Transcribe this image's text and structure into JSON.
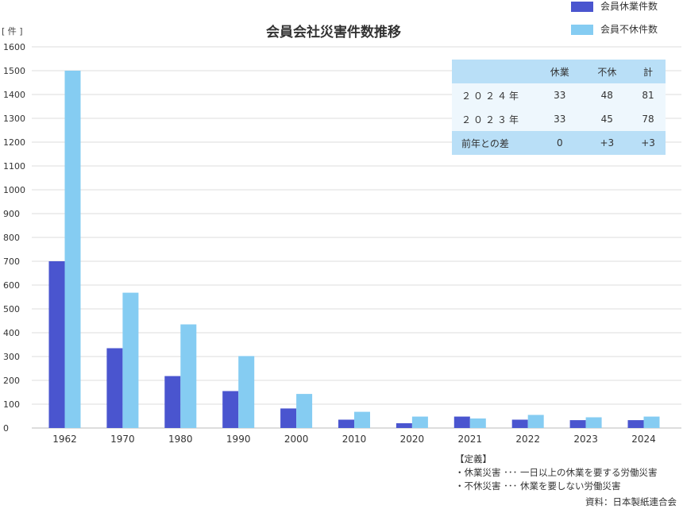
{
  "chart_data": {
    "type": "bar",
    "title": "会員会社災害件数推移",
    "ylabel": "[ 件 ]",
    "ylim": [
      0,
      1600
    ],
    "yticks": [
      0,
      100,
      200,
      300,
      400,
      500,
      600,
      700,
      800,
      900,
      1000,
      1100,
      1200,
      1300,
      1400,
      1500,
      1600
    ],
    "categories": [
      "1962",
      "1970",
      "1980",
      "1990",
      "2000",
      "2010",
      "2020",
      "2021",
      "2022",
      "2023",
      "2024"
    ],
    "series": [
      {
        "name": "会員休業件数",
        "color": "#4a55cf",
        "values": [
          700,
          335,
          218,
          155,
          82,
          35,
          20,
          48,
          35,
          33,
          33
        ]
      },
      {
        "name": "会員不休件数",
        "color": "#85ccf2",
        "values": [
          1500,
          568,
          435,
          302,
          143,
          68,
          48,
          40,
          55,
          45,
          48
        ]
      }
    ],
    "grid": true,
    "legend_position": "top-right"
  },
  "summary_table": {
    "headers": [
      "",
      "休業",
      "不休",
      "計"
    ],
    "rows": [
      [
        "２０２４年",
        "33",
        "48",
        "81"
      ],
      [
        "２０２３年",
        "33",
        "45",
        "78"
      ],
      [
        "前年との差",
        "0",
        "+3",
        "+3"
      ]
    ]
  },
  "notes": {
    "heading": "【定義】",
    "lines": [
      "・休業災害 ･･･ 一日以上の休業を要する労働災害",
      "・不休災害 ･･･ 休業を要しない労働災害"
    ]
  },
  "source": "資料：日本製紙連合会"
}
